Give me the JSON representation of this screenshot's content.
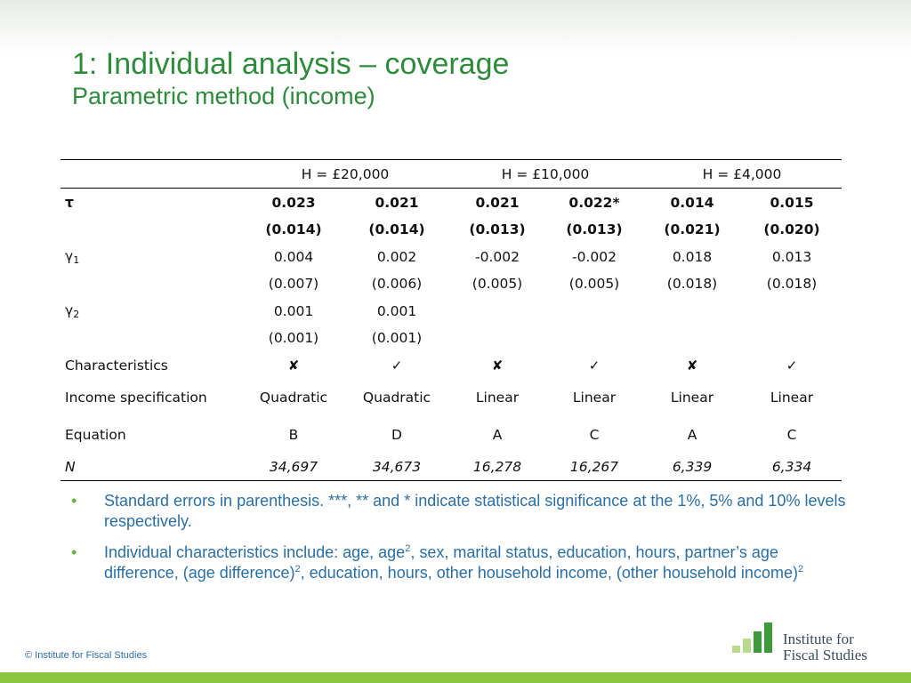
{
  "slide": {
    "title": "1: Individual analysis – coverage",
    "subtitle": "Parametric method (income)"
  },
  "table": {
    "headers": [
      "H = £20,000",
      "H = £10,000",
      "H = £4,000"
    ],
    "tau": {
      "label": "τ",
      "coefs": [
        "0.023",
        "0.021",
        "0.021",
        "0.022*",
        "0.014",
        "0.015"
      ],
      "ses": [
        "(0.014)",
        "(0.014)",
        "(0.013)",
        "(0.013)",
        "(0.021)",
        "(0.020)"
      ]
    },
    "gamma1": {
      "symbol": "γ",
      "subscript": "1",
      "coefs": [
        "0.004",
        "0.002",
        "-0.002",
        "-0.002",
        "0.018",
        "0.013"
      ],
      "ses": [
        "(0.007)",
        "(0.006)",
        "(0.005)",
        "(0.005)",
        "(0.018)",
        "(0.018)"
      ]
    },
    "gamma2": {
      "symbol": "γ",
      "subscript": "2",
      "coefs": [
        "0.001",
        "0.001",
        "",
        "",
        "",
        ""
      ],
      "ses": [
        "(0.001)",
        "(0.001)",
        "",
        "",
        "",
        ""
      ]
    },
    "characteristics": {
      "label": "Characteristics",
      "marks": [
        "✘",
        "✓",
        "✘",
        "✓",
        "✘",
        "✓"
      ],
      "mark_names": [
        "cross-icon",
        "check-icon",
        "cross-icon",
        "check-icon",
        "cross-icon",
        "check-icon"
      ]
    },
    "income_spec": {
      "label": "Income specification",
      "values": [
        "Quadratic",
        "Quadratic",
        "Linear",
        "Linear",
        "Linear",
        "Linear"
      ]
    },
    "equation": {
      "label": "Equation",
      "values": [
        "B",
        "D",
        "A",
        "C",
        "A",
        "C"
      ]
    },
    "n": {
      "label": "N",
      "values": [
        "34,697",
        "34,673",
        "16,278",
        "16,267",
        "6,339",
        "6,334"
      ]
    }
  },
  "notes": {
    "bullet": "•",
    "note1": "Standard errors in parenthesis. ***, ** and * indicate statistical significance at the 1%, 5% and 10% levels respectively.",
    "note2_a": "Individual characteristics include: age, age",
    "note2_b": ", sex, marital status, education, hours, partner’s age difference, (age difference)",
    "note2_c": ", education, hours, other household income, (other household income)",
    "sup": "2"
  },
  "footer": {
    "copyright": "© Institute for Fiscal Studies",
    "logo_line1": "Institute for",
    "logo_line2": "Fiscal Studies"
  },
  "colors": {
    "title": "#2e8b3c",
    "notes_text": "#2a6fa4",
    "bullet": "#6cb33e",
    "bottom_bar": "#8cc63e",
    "logo_bar_light": "#b9d98c",
    "logo_bar_dark": "#3c9a3a",
    "logo_text": "#3a4a5e"
  }
}
